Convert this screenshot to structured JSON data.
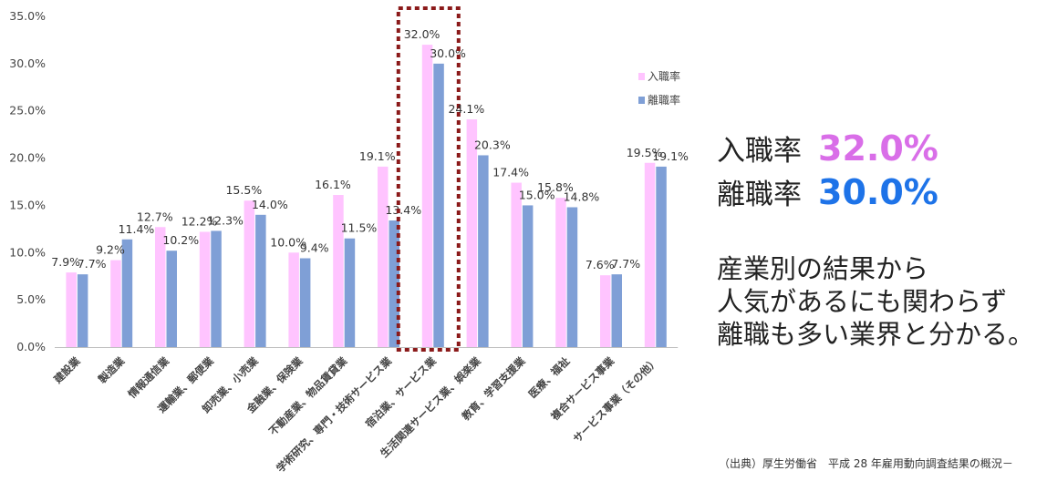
{
  "chart_data": {
    "type": "bar",
    "categories": [
      "建設業",
      "製造業",
      "情報通信業",
      "運輸業、郵便業",
      "卸売業、小売業",
      "金融業、保険業",
      "不動産業、物品賃貸業",
      "学術研究、専門・技術サービス業",
      "宿泊業、サービス業",
      "生活関連サービス業、娯楽業",
      "教育、学習支援業",
      "医療、福祉",
      "複合サービス事業",
      "サービス事業（その他）"
    ],
    "series": [
      {
        "name": "入職率",
        "color": "#ffc4ff",
        "values": [
          7.9,
          9.2,
          12.7,
          12.2,
          15.5,
          10.0,
          16.1,
          19.1,
          32.0,
          24.1,
          17.4,
          15.8,
          7.6,
          19.5
        ]
      },
      {
        "name": "離職率",
        "color": "#7f9fd6",
        "values": [
          7.7,
          11.4,
          10.2,
          12.3,
          14.0,
          9.4,
          11.5,
          13.4,
          30.0,
          20.3,
          15.0,
          14.8,
          7.7,
          19.1
        ]
      }
    ],
    "value_labels": {
      "entry": [
        "7.9%",
        "9.2%",
        "12.7%",
        "12.2%",
        "15.5%",
        "10.0%",
        "16.1%",
        "19.1%",
        "32.0%",
        "24.1%",
        "17.4%",
        "15.8%",
        "7.6%",
        "19.5%"
      ],
      "exit": [
        "7.7%",
        "11.4%",
        "10.2%",
        "12.3%",
        "14.0%",
        "9.4%",
        "11.5%",
        "13.4%",
        "30.0%",
        "20.3%",
        "15.0%",
        "14.8%",
        "7.7%",
        "19.1%"
      ]
    },
    "yticks": [
      "0.0%",
      "5.0%",
      "10.0%",
      "15.0%",
      "20.0%",
      "25.0%",
      "30.0%",
      "35.0%"
    ],
    "ylim": [
      0,
      35
    ],
    "legend": "right",
    "highlight_category": "宿泊業、サービス業",
    "highlight_color": "#8b1a1a",
    "grid": false
  },
  "stats": {
    "entry_label": "入職率",
    "entry_value": "32.0%",
    "entry_color": "#d96ee8",
    "exit_label": "離職率",
    "exit_value": "30.0%",
    "exit_color": "#1e73e8"
  },
  "message": {
    "line1": "産業別の結果から",
    "line2": "人気があるにも関わらず",
    "line3": "離職も多い業界と分かる。"
  },
  "source": "（出典）厚生労働省　平成 28 年雇用動向調査結果の概況－"
}
